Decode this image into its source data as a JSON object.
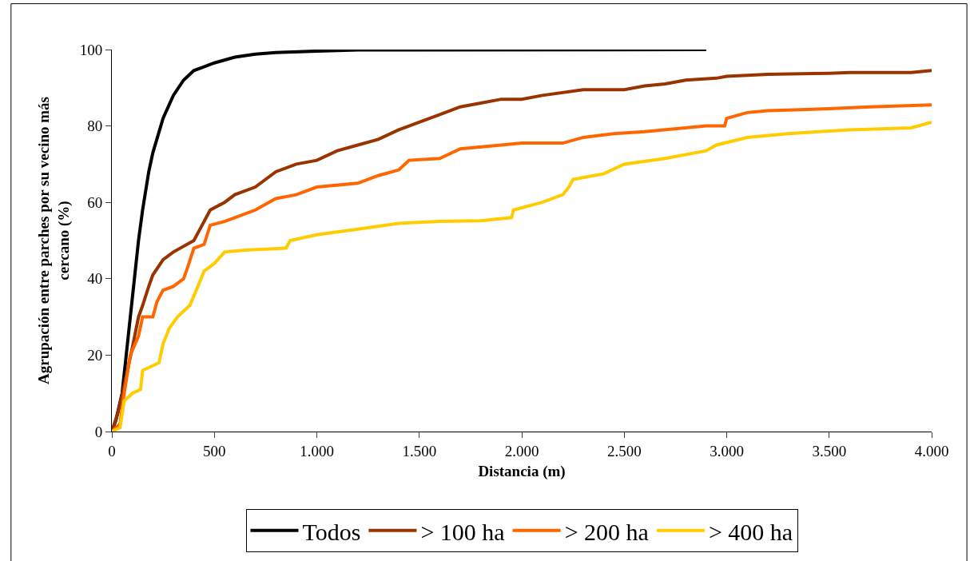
{
  "chart_data": {
    "type": "line",
    "xlabel": "Distancia (m)",
    "ylabel": "Agrupación entre parches por su vecino más cercano (%)",
    "xlim": [
      0,
      4000
    ],
    "xticks": [
      0,
      500,
      {
        "value": 1000,
        "label": "1.000"
      },
      {
        "value": 1500,
        "label": "1.500"
      },
      {
        "value": 2000,
        "label": "2.000"
      },
      {
        "value": 2500,
        "label": "2.500"
      },
      {
        "value": 3000,
        "label": "3.000"
      },
      {
        "value": 3500,
        "label": "3.500"
      },
      {
        "value": 4000,
        "label": "4.000"
      }
    ],
    "ylim": [
      0,
      100
    ],
    "yticks": [
      0,
      20,
      40,
      60,
      80,
      100
    ],
    "grid": false,
    "legend": "bottom",
    "marker": "none",
    "line_style": "solid",
    "series": [
      {
        "name": "Todos",
        "color": "#000000",
        "x": [
          0,
          20,
          50,
          80,
          100,
          130,
          150,
          180,
          200,
          250,
          300,
          350,
          400,
          500,
          600,
          700,
          800,
          1000,
          1200,
          2900
        ],
        "values": [
          0,
          3,
          10,
          25,
          35,
          50,
          58,
          68,
          73,
          82,
          88,
          92,
          94.5,
          96.5,
          98,
          98.8,
          99.2,
          99.6,
          99.9,
          100
        ]
      },
      {
        "name": "> 100 ha",
        "color": "#993300",
        "x": [
          0,
          30,
          60,
          80,
          100,
          130,
          150,
          180,
          200,
          250,
          300,
          400,
          450,
          480,
          550,
          600,
          700,
          800,
          900,
          1000,
          1100,
          1200,
          1300,
          1400,
          1500,
          1600,
          1700,
          1800,
          1900,
          2000,
          2100,
          2300,
          2500,
          2600,
          2700,
          2800,
          2950,
          3000,
          3200,
          3500,
          3600,
          3900,
          4000
        ],
        "values": [
          0,
          5,
          12,
          17,
          22,
          30,
          33,
          38,
          41,
          45,
          47,
          50,
          55,
          58,
          60,
          62,
          64,
          68,
          70,
          71,
          73.5,
          75,
          76.5,
          79,
          81,
          83,
          85,
          86,
          87,
          87,
          88,
          89.5,
          89.5,
          90.5,
          91,
          92,
          92.5,
          93,
          93.5,
          93.8,
          94,
          94,
          94.5
        ]
      },
      {
        "name": "> 200 ha",
        "color": "#ff6600",
        "x": [
          0,
          40,
          60,
          90,
          130,
          150,
          200,
          220,
          250,
          300,
          350,
          370,
          400,
          450,
          480,
          550,
          600,
          700,
          800,
          900,
          1000,
          1200,
          1300,
          1400,
          1450,
          1600,
          1700,
          1900,
          2000,
          2200,
          2300,
          2450,
          2600,
          2900,
          2990,
          3000,
          3100,
          3200,
          3500,
          3700,
          4000
        ],
        "values": [
          0,
          2,
          10,
          20,
          25,
          30,
          30,
          34,
          37,
          38,
          40,
          43,
          48,
          49,
          54,
          55,
          56,
          58,
          61,
          62,
          64,
          65,
          67,
          68.5,
          71,
          71.5,
          74,
          75,
          75.5,
          75.5,
          77,
          78,
          78.5,
          80,
          80,
          82,
          83.5,
          84,
          84.5,
          85,
          85.5
        ]
      },
      {
        "name": "> 400 ha",
        "color": "#ffcc00",
        "x": [
          0,
          40,
          60,
          100,
          140,
          150,
          230,
          250,
          280,
          320,
          380,
          420,
          450,
          500,
          550,
          650,
          850,
          870,
          1000,
          1200,
          1400,
          1600,
          1800,
          1950,
          1960,
          2100,
          2200,
          2230,
          2250,
          2400,
          2500,
          2700,
          2900,
          2950,
          3100,
          3300,
          3600,
          3900,
          4000
        ],
        "values": [
          0,
          1,
          8,
          10,
          11,
          16,
          18,
          23,
          27,
          30,
          33,
          38,
          42,
          44,
          47,
          47.5,
          48,
          50,
          51.5,
          53,
          54.5,
          55,
          55.2,
          56,
          58,
          60,
          62,
          64,
          66,
          67.5,
          70,
          71.5,
          73.5,
          75,
          77,
          78,
          79,
          79.5,
          81
        ]
      }
    ]
  }
}
